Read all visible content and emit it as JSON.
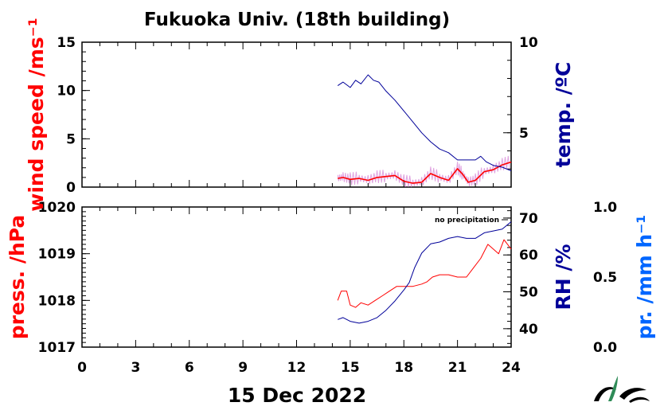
{
  "title": "Fukuoka Univ. (18th building)",
  "date_label": "15 Dec 2022",
  "annotation": "no precipitation",
  "colors": {
    "wind": "#ff0000",
    "wind_raw": "#cc66cc",
    "temp": "#000099",
    "press": "#ff0000",
    "rh": "#000099",
    "precip": "#0066ff"
  },
  "chart_data": [
    {
      "type": "line",
      "xlabel": "",
      "x_ticks": [
        "0",
        "3",
        "6",
        "9",
        "12",
        "15",
        "18",
        "21",
        "24"
      ],
      "xlim": [
        0,
        24
      ],
      "left_axis": {
        "label": "wind speed /ms⁻¹",
        "ylim": [
          0,
          15
        ],
        "ticks": [
          "0",
          "5",
          "10",
          "15"
        ]
      },
      "right_axis": {
        "label": "temp. /ºC",
        "ylim": [
          2,
          10
        ],
        "ticks": [
          "5",
          "10"
        ]
      },
      "series": [
        {
          "axis": "left",
          "x": [
            14.3,
            14.6,
            15.0,
            15.5,
            16.0,
            16.5,
            17.0,
            17.5,
            18.0,
            18.5,
            19.0,
            19.5,
            20.0,
            20.5,
            21.0,
            21.3,
            21.6,
            22.0,
            22.5,
            23.0,
            23.5,
            24.0
          ],
          "values": [
            0.9,
            1.0,
            0.8,
            0.9,
            0.7,
            1.0,
            1.1,
            1.2,
            0.6,
            0.4,
            0.5,
            1.4,
            1.0,
            0.7,
            1.9,
            1.3,
            0.5,
            0.7,
            1.6,
            1.8,
            2.3,
            2.6
          ]
        },
        {
          "axis": "right",
          "x": [
            14.3,
            14.6,
            15.0,
            15.3,
            15.6,
            16.0,
            16.3,
            16.6,
            17.0,
            17.5,
            18.0,
            18.5,
            19.0,
            19.5,
            20.0,
            20.5,
            21.0,
            21.5,
            22.0,
            22.3,
            22.6,
            23.0,
            23.5,
            24.0
          ],
          "values": [
            7.6,
            7.8,
            7.5,
            7.9,
            7.7,
            8.2,
            7.9,
            7.8,
            7.3,
            6.8,
            6.2,
            5.6,
            5.0,
            4.5,
            4.1,
            3.9,
            3.5,
            3.5,
            3.5,
            3.7,
            3.4,
            3.2,
            3.1,
            2.9
          ]
        }
      ]
    },
    {
      "type": "line",
      "xlabel": "15 Dec 2022",
      "x_ticks": [
        "0",
        "3",
        "6",
        "9",
        "12",
        "15",
        "18",
        "21",
        "24"
      ],
      "xlim": [
        0,
        24
      ],
      "left_axis": {
        "label": "press. /hPa",
        "ylim": [
          1017,
          1020
        ],
        "ticks": [
          "1017",
          "1018",
          "1019",
          "1020"
        ]
      },
      "right_axis": {
        "label": "RH /%",
        "ylim": [
          35,
          73
        ],
        "ticks": [
          "40",
          "50",
          "60",
          "70"
        ]
      },
      "far_right_axis": {
        "label": "pr. /mm h⁻¹",
        "ylim": [
          0,
          1
        ],
        "ticks": [
          "0.0",
          "0.5",
          "1.0"
        ]
      },
      "series": [
        {
          "axis": "left",
          "x": [
            14.3,
            14.5,
            14.8,
            15.0,
            15.3,
            15.6,
            16.0,
            16.4,
            16.8,
            17.2,
            17.6,
            18.0,
            18.5,
            19.0,
            19.3,
            19.6,
            20.0,
            20.5,
            21.0,
            21.5,
            21.9,
            22.3,
            22.7,
            23.0,
            23.3,
            23.6,
            24.0
          ],
          "values": [
            1018.0,
            1018.2,
            1018.2,
            1017.9,
            1017.85,
            1017.95,
            1017.9,
            1018.0,
            1018.1,
            1018.2,
            1018.3,
            1018.3,
            1018.3,
            1018.35,
            1018.4,
            1018.5,
            1018.55,
            1018.55,
            1018.5,
            1018.5,
            1018.7,
            1018.9,
            1019.2,
            1019.1,
            1019.0,
            1019.3,
            1019.1
          ]
        },
        {
          "axis": "right",
          "x": [
            14.3,
            14.6,
            15.0,
            15.5,
            16.0,
            16.5,
            17.0,
            17.5,
            18.0,
            18.3,
            18.6,
            19.0,
            19.5,
            20.0,
            20.5,
            21.0,
            21.5,
            22.0,
            22.5,
            23.0,
            23.5,
            24.0
          ],
          "values": [
            42.5,
            43.0,
            42.0,
            41.5,
            42.0,
            43.0,
            45.0,
            47.5,
            50.5,
            52.5,
            56.5,
            60.5,
            63.0,
            63.5,
            64.5,
            65.0,
            64.5,
            64.5,
            66.0,
            66.5,
            67.0,
            69.0
          ]
        }
      ]
    }
  ]
}
